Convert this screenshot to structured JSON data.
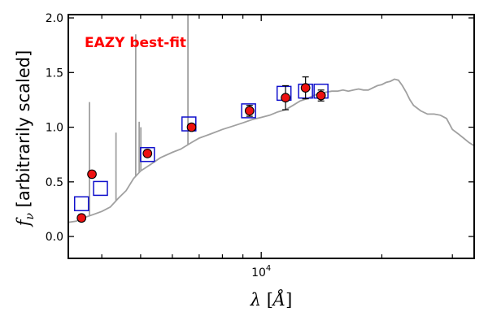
{
  "chart_data": {
    "type": "scatter",
    "title": "",
    "xlabel": "λ [Å]",
    "ylabel": "f_ν [arbitrarily scaled]",
    "xscale": "log",
    "xlim": [
      3300,
      34000
    ],
    "ylim": [
      -0.2,
      2.03
    ],
    "yticks": [
      "0.0",
      "0.5",
      "1.0",
      "1.5",
      "2.0"
    ],
    "xtick_labels": [
      {
        "base": "10",
        "exp": "4",
        "value": 10000
      }
    ],
    "grid": false,
    "annotation": "EAZY best-fit",
    "colors": {
      "template": "#a0a0a0",
      "model": "#1010cc",
      "observed_fill": "#ee1111",
      "observed_edge": "#000000",
      "annotation": "#ff0000"
    },
    "series": [
      {
        "kind": "template_sed",
        "x": [
          3300,
          3450,
          3600,
          3800,
          4000,
          4200,
          4400,
          4600,
          4800,
          5000,
          5300,
          5600,
          6000,
          6300,
          6700,
          7000,
          7500,
          8000,
          8500,
          9000,
          9500,
          10000,
          10500,
          11000,
          11500,
          12000,
          12500,
          13000,
          13500,
          14000,
          14500,
          15000,
          15500,
          16000,
          16500,
          17000,
          17500,
          18000,
          18500,
          19000,
          19500,
          20000,
          20500,
          21000,
          21500,
          22000,
          22500,
          23000,
          23500,
          24000,
          25000,
          26000,
          27000,
          28000,
          29000,
          30000,
          31000,
          32000,
          33000,
          34000
        ],
        "y": [
          0.13,
          0.14,
          0.17,
          0.2,
          0.23,
          0.27,
          0.35,
          0.42,
          0.53,
          0.6,
          0.66,
          0.72,
          0.77,
          0.8,
          0.86,
          0.9,
          0.94,
          0.98,
          1.01,
          1.04,
          1.07,
          1.09,
          1.11,
          1.14,
          1.16,
          1.2,
          1.24,
          1.26,
          1.29,
          1.31,
          1.32,
          1.33,
          1.33,
          1.34,
          1.33,
          1.34,
          1.35,
          1.34,
          1.34,
          1.36,
          1.38,
          1.39,
          1.41,
          1.42,
          1.44,
          1.43,
          1.38,
          1.32,
          1.25,
          1.2,
          1.15,
          1.12,
          1.12,
          1.11,
          1.08,
          0.98,
          0.94,
          0.9,
          0.86,
          0.83
        ]
      },
      {
        "kind": "emission_lines",
        "x": [
          3727,
          4340,
          4861,
          4959,
          5007,
          6563
        ],
        "peak": [
          1.23,
          0.95,
          1.85,
          1.05,
          1.0,
          2.03
        ]
      },
      {
        "kind": "model_photometry",
        "x": [
          3560,
          3970,
          5200,
          6600,
          9300,
          11400,
          12900,
          14100
        ],
        "y": [
          0.3,
          0.44,
          0.75,
          1.03,
          1.15,
          1.31,
          1.33,
          1.33
        ]
      },
      {
        "kind": "observed_photometry",
        "x": [
          3560,
          3780,
          5200,
          6700,
          9350,
          11500,
          12900,
          14100
        ],
        "y": [
          0.17,
          0.57,
          0.76,
          1.0,
          1.15,
          1.27,
          1.36,
          1.29
        ],
        "yerr": [
          0.03,
          0.03,
          0.03,
          0.03,
          0.05,
          0.11,
          0.1,
          0.05
        ]
      }
    ]
  }
}
